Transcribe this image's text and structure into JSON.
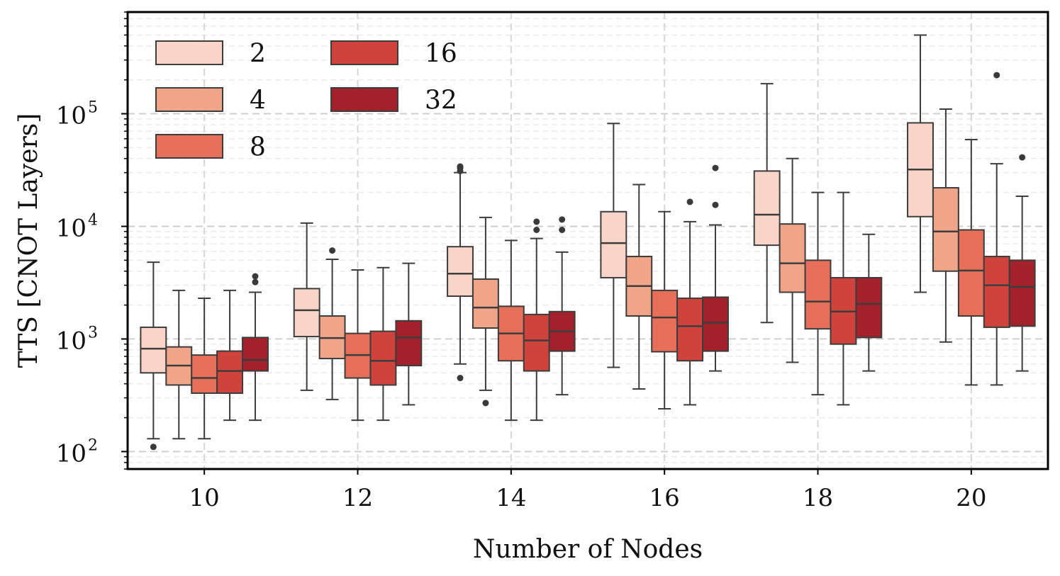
{
  "chart_data": {
    "type": "boxplot",
    "title": "",
    "xlabel": "Number of Nodes",
    "ylabel": "TTS [CNOT Layers]",
    "yscale": "log",
    "ylim": [
      70,
      800000
    ],
    "y_major_ticks": [
      {
        "value": 100,
        "base": "10",
        "exp": "2"
      },
      {
        "value": 1000,
        "base": "10",
        "exp": "3"
      },
      {
        "value": 10000,
        "base": "10",
        "exp": "4"
      },
      {
        "value": 100000,
        "base": "10",
        "exp": "5"
      }
    ],
    "categories": [
      "10",
      "12",
      "14",
      "16",
      "18",
      "20"
    ],
    "legend": {
      "position": "top-left",
      "columns": 2
    },
    "grid": true,
    "series": [
      {
        "name": "2",
        "color": "#f8d5c8",
        "boxes": [
          {
            "whislo": 130,
            "q1": 500,
            "med": 820,
            "q3": 1270,
            "whishi": 4800,
            "fliers": [
              110
            ]
          },
          {
            "whislo": 350,
            "q1": 1050,
            "med": 1800,
            "q3": 2800,
            "whishi": 10700,
            "fliers": []
          },
          {
            "whislo": 600,
            "q1": 2400,
            "med": 3800,
            "q3": 6600,
            "whishi": 30000,
            "fliers": [
              31000,
              33000,
              34000,
              450
            ]
          },
          {
            "whislo": 560,
            "q1": 3500,
            "med": 7100,
            "q3": 13500,
            "whishi": 82000,
            "fliers": []
          },
          {
            "whislo": 1400,
            "q1": 6800,
            "med": 12700,
            "q3": 31000,
            "whishi": 185000,
            "fliers": []
          },
          {
            "whislo": 2600,
            "q1": 12200,
            "med": 32000,
            "q3": 83000,
            "whishi": 500000,
            "fliers": []
          }
        ]
      },
      {
        "name": "4",
        "color": "#f0a488",
        "boxes": [
          {
            "whislo": 130,
            "q1": 390,
            "med": 580,
            "q3": 850,
            "whishi": 2700,
            "fliers": []
          },
          {
            "whislo": 290,
            "q1": 670,
            "med": 1020,
            "q3": 1600,
            "whishi": 5100,
            "fliers": [
              6100
            ]
          },
          {
            "whislo": 350,
            "q1": 1250,
            "med": 1900,
            "q3": 3400,
            "whishi": 12000,
            "fliers": [
              270
            ]
          },
          {
            "whislo": 360,
            "q1": 1600,
            "med": 2950,
            "q3": 5400,
            "whishi": 23500,
            "fliers": []
          },
          {
            "whislo": 620,
            "q1": 2600,
            "med": 4700,
            "q3": 10500,
            "whishi": 40000,
            "fliers": []
          },
          {
            "whislo": 940,
            "q1": 4000,
            "med": 9000,
            "q3": 22000,
            "whishi": 110000,
            "fliers": []
          }
        ]
      },
      {
        "name": "8",
        "color": "#e76e58",
        "boxes": [
          {
            "whislo": 130,
            "q1": 330,
            "med": 450,
            "q3": 720,
            "whishi": 2300,
            "fliers": []
          },
          {
            "whislo": 190,
            "q1": 450,
            "med": 720,
            "q3": 1120,
            "whishi": 4100,
            "fliers": []
          },
          {
            "whislo": 190,
            "q1": 640,
            "med": 1120,
            "q3": 1950,
            "whishi": 7500,
            "fliers": []
          },
          {
            "whislo": 240,
            "q1": 770,
            "med": 1550,
            "q3": 2700,
            "whishi": 13500,
            "fliers": []
          },
          {
            "whislo": 320,
            "q1": 1230,
            "med": 2150,
            "q3": 5000,
            "whishi": 20000,
            "fliers": []
          },
          {
            "whislo": 390,
            "q1": 1600,
            "med": 4050,
            "q3": 9300,
            "whishi": 59000,
            "fliers": []
          }
        ]
      },
      {
        "name": "16",
        "color": "#cf433c",
        "boxes": [
          {
            "whislo": 190,
            "q1": 330,
            "med": 520,
            "q3": 780,
            "whishi": 2700,
            "fliers": []
          },
          {
            "whislo": 190,
            "q1": 390,
            "med": 640,
            "q3": 1170,
            "whishi": 4300,
            "fliers": []
          },
          {
            "whislo": 190,
            "q1": 520,
            "med": 970,
            "q3": 1650,
            "whishi": 7800,
            "fliers": [
              9300,
              11000
            ]
          },
          {
            "whislo": 260,
            "q1": 640,
            "med": 1300,
            "q3": 2300,
            "whishi": 11000,
            "fliers": [
              16500
            ]
          },
          {
            "whislo": 260,
            "q1": 900,
            "med": 1750,
            "q3": 3500,
            "whishi": 20000,
            "fliers": []
          },
          {
            "whislo": 390,
            "q1": 1270,
            "med": 3000,
            "q3": 5400,
            "whishi": 36000,
            "fliers": [
              220000
            ]
          }
        ]
      },
      {
        "name": "32",
        "color": "#a3212b",
        "boxes": [
          {
            "whislo": 190,
            "q1": 520,
            "med": 650,
            "q3": 1030,
            "whishi": 2600,
            "fliers": [
              3200,
              3600
            ]
          },
          {
            "whislo": 260,
            "q1": 580,
            "med": 1030,
            "q3": 1450,
            "whishi": 4700,
            "fliers": []
          },
          {
            "whislo": 320,
            "q1": 780,
            "med": 1170,
            "q3": 1750,
            "whishi": 5900,
            "fliers": [
              9300,
              11500
            ]
          },
          {
            "whislo": 520,
            "q1": 780,
            "med": 1400,
            "q3": 2350,
            "whishi": 10300,
            "fliers": [
              15500,
              33000
            ]
          },
          {
            "whislo": 520,
            "q1": 1030,
            "med": 2050,
            "q3": 3500,
            "whishi": 8500,
            "fliers": []
          },
          {
            "whislo": 520,
            "q1": 1300,
            "med": 2900,
            "q3": 5000,
            "whishi": 18500,
            "fliers": [
              41000
            ]
          }
        ]
      }
    ]
  }
}
